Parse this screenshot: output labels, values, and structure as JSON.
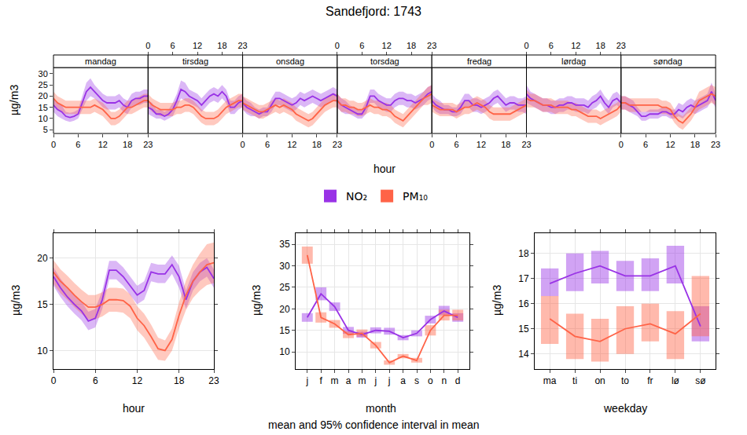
{
  "chart_data": [
    {
      "type": "line",
      "title": "Sandefjord: 1743",
      "x_label": "hour",
      "y_label": "µg/m3",
      "facets": [
        "mandag",
        "tirsdag",
        "onsdag",
        "torsdag",
        "fredag",
        "lørdag",
        "søndag"
      ],
      "x": [
        0,
        1,
        2,
        3,
        4,
        5,
        6,
        7,
        8,
        9,
        10,
        11,
        12,
        13,
        14,
        15,
        16,
        17,
        18,
        19,
        20,
        21,
        22,
        23
      ],
      "xlim": [
        0,
        23
      ],
      "xticks": [
        0,
        6,
        12,
        18,
        23
      ],
      "ylim": [
        3.3,
        32.8
      ],
      "yticks": [
        5,
        10,
        15,
        20,
        25,
        30
      ],
      "grid": false,
      "legend": "bottom",
      "series": [
        {
          "name": "NO₂",
          "color": "#9932e6",
          "values": [
            [
              16,
              14,
              13,
              11,
              10.5,
              11,
              12,
              17,
              22,
              24,
              22,
              20,
              18,
              17,
              17,
              17,
              18,
              16,
              15,
              18,
              19,
              19,
              20,
              20
            ],
            [
              15,
              14,
              12,
              12,
              11,
              12,
              14,
              18,
              23,
              22,
              20,
              19,
              18,
              16,
              18,
              20,
              21,
              20,
              22,
              20,
              15,
              15,
              17,
              18
            ],
            [
              17,
              15,
              14,
              13,
              12,
              13,
              13,
              16,
              19,
              19,
              18,
              17,
              16,
              17,
              19,
              18,
              19,
              20,
              19,
              18,
              19,
              20,
              21,
              20
            ],
            [
              18,
              16,
              15,
              14,
              13,
              12,
              12,
              15,
              20,
              20,
              18,
              17,
              16,
              16,
              18,
              19,
              19,
              18,
              18,
              17,
              18,
              19,
              21,
              22
            ],
            [
              18,
              16,
              15,
              14,
              14,
              13,
              13,
              15,
              18,
              18,
              16,
              16,
              15,
              16,
              17,
              19,
              20,
              18,
              16,
              17,
              17,
              16,
              16,
              16
            ],
            [
              21,
              19,
              18,
              17,
              16,
              16,
              15,
              15,
              16,
              16,
              17,
              17,
              16,
              16,
              16,
              15,
              17,
              18,
              20,
              17,
              15,
              18,
              19,
              17
            ],
            [
              17,
              17,
              16,
              15,
              13,
              11,
              11,
              12,
              12,
              12,
              13,
              13,
              12,
              12,
              14,
              13,
              15,
              16,
              15,
              16,
              17,
              18,
              22,
              18
            ]
          ],
          "ci": [
            [
              3,
              3,
              3,
              2,
              2,
              2,
              2,
              3,
              4,
              4,
              3,
              3,
              3,
              3,
              3,
              3,
              3,
              3,
              3,
              3,
              3,
              3,
              3,
              3
            ],
            [
              3,
              3,
              2,
              2,
              2,
              2,
              3,
              3,
              4,
              4,
              3,
              3,
              3,
              3,
              3,
              3,
              3,
              3,
              3,
              3,
              3,
              3,
              3,
              3
            ],
            [
              3,
              3,
              3,
              2,
              2,
              2,
              2,
              3,
              3,
              3,
              3,
              3,
              3,
              3,
              3,
              3,
              3,
              3,
              3,
              3,
              3,
              3,
              3,
              3
            ],
            [
              3,
              3,
              3,
              2,
              2,
              2,
              2,
              3,
              3,
              3,
              3,
              3,
              3,
              3,
              3,
              3,
              3,
              3,
              3,
              3,
              3,
              3,
              3,
              3
            ],
            [
              3,
              3,
              3,
              2,
              2,
              2,
              2,
              3,
              3,
              3,
              3,
              3,
              3,
              3,
              3,
              3,
              3,
              3,
              3,
              3,
              3,
              3,
              3,
              4
            ],
            [
              4,
              3,
              3,
              3,
              3,
              3,
              3,
              3,
              3,
              3,
              3,
              3,
              3,
              3,
              3,
              3,
              3,
              3,
              3,
              3,
              3,
              3,
              3,
              3
            ],
            [
              3,
              3,
              3,
              3,
              2,
              2,
              2,
              2,
              2,
              2,
              2,
              2,
              2,
              2,
              3,
              3,
              3,
              3,
              3,
              3,
              3,
              3,
              4,
              3
            ]
          ]
        },
        {
          "name": "PM₁₀",
          "color": "#ff6347",
          "values": [
            [
              19,
              17,
              16,
              15,
              15,
              15,
              15,
              15,
              15,
              15,
              16,
              15,
              14,
              12,
              10,
              10,
              11,
              13,
              15,
              15,
              16,
              17,
              18,
              18
            ],
            [
              18,
              16,
              15,
              14,
              14,
              14,
              14,
              15,
              15,
              16,
              16,
              15,
              13,
              11,
              10,
              10,
              10,
              11,
              13,
              15,
              16,
              17,
              18,
              18
            ],
            [
              17,
              16,
              15,
              14,
              13,
              13,
              14,
              15,
              16,
              15,
              16,
              15,
              14,
              12,
              11,
              10,
              9,
              10,
              12,
              14,
              16,
              17,
              18,
              18
            ],
            [
              18,
              16,
              16,
              15,
              15,
              14,
              14,
              15,
              16,
              15,
              15,
              14,
              14,
              13,
              11,
              10,
              9,
              11,
              13,
              15,
              17,
              19,
              20,
              21
            ],
            [
              16,
              15,
              14,
              14,
              14,
              14,
              13,
              14,
              15,
              15,
              16,
              17,
              16,
              15,
              13,
              12,
              12,
              12,
              12,
              12,
              13,
              14,
              15,
              16
            ],
            [
              19,
              18,
              18,
              17,
              16,
              16,
              16,
              15,
              15,
              15,
              15,
              14,
              14,
              13,
              12,
              11,
              11,
              11,
              10,
              11,
              12,
              13,
              14,
              16
            ],
            [
              17,
              17,
              16,
              16,
              16,
              16,
              16,
              16,
              16,
              16,
              15,
              15,
              14,
              11,
              9,
              8,
              10,
              12,
              15,
              18,
              19,
              20,
              21,
              20
            ]
          ],
          "ci": [
            [
              3,
              3,
              3,
              3,
              3,
              3,
              3,
              3,
              3,
              3,
              3,
              3,
              3,
              3,
              3,
              3,
              3,
              3,
              3,
              3,
              3,
              3,
              3,
              3
            ],
            [
              3,
              3,
              3,
              3,
              3,
              3,
              3,
              3,
              3,
              3,
              3,
              3,
              3,
              3,
              3,
              3,
              3,
              3,
              3,
              3,
              3,
              3,
              3,
              3
            ],
            [
              3,
              3,
              3,
              3,
              3,
              3,
              3,
              3,
              3,
              3,
              3,
              3,
              3,
              3,
              3,
              3,
              3,
              3,
              3,
              3,
              3,
              3,
              3,
              3
            ],
            [
              3,
              3,
              3,
              3,
              3,
              3,
              3,
              3,
              3,
              3,
              3,
              3,
              3,
              3,
              3,
              3,
              3,
              3,
              3,
              3,
              3,
              3,
              4,
              4
            ],
            [
              3,
              3,
              3,
              3,
              3,
              3,
              3,
              3,
              3,
              3,
              3,
              3,
              3,
              3,
              3,
              3,
              3,
              3,
              3,
              3,
              3,
              3,
              3,
              3
            ],
            [
              4,
              3,
              3,
              3,
              3,
              3,
              3,
              3,
              3,
              3,
              3,
              3,
              3,
              3,
              3,
              3,
              3,
              3,
              3,
              3,
              3,
              3,
              3,
              3
            ],
            [
              3,
              3,
              3,
              3,
              3,
              3,
              3,
              3,
              3,
              3,
              3,
              3,
              3,
              3,
              3,
              3,
              3,
              3,
              3,
              4,
              4,
              4,
              4,
              4
            ]
          ]
        }
      ]
    },
    {
      "type": "line",
      "x_label": "hour",
      "y_label": "µg/m3",
      "x": [
        0,
        1,
        2,
        3,
        4,
        5,
        6,
        7,
        8,
        9,
        10,
        11,
        12,
        13,
        14,
        15,
        16,
        17,
        18,
        19,
        20,
        21,
        22,
        23
      ],
      "xlim": [
        0,
        23
      ],
      "xticks": [
        0,
        6,
        12,
        18,
        23
      ],
      "ylim": [
        8,
        22.7
      ],
      "yticks": [
        10,
        15,
        20
      ],
      "grid": true,
      "series": [
        {
          "name": "NO₂",
          "color": "#9932e6",
          "values": [
            18,
            16.8,
            15.8,
            15,
            14.3,
            13.2,
            13.5,
            15.5,
            18.7,
            18.7,
            18,
            17,
            16,
            16.5,
            18.5,
            18.3,
            18.3,
            19.3,
            18,
            15.5,
            17.5,
            18.5,
            19,
            17.8
          ],
          "ci": [
            1,
            1,
            1,
            1,
            1,
            1,
            1,
            1,
            1,
            1,
            1,
            1,
            1,
            1,
            1,
            1,
            1,
            1,
            1.2,
            1,
            1,
            1,
            1,
            1
          ]
        },
        {
          "name": "PM₁₀",
          "color": "#ff6347",
          "values": [
            18.5,
            17.5,
            16.8,
            16,
            15.3,
            14.7,
            14.7,
            15,
            15.5,
            15.5,
            15.4,
            14.8,
            13.5,
            12.7,
            11.5,
            10.2,
            10,
            11.2,
            13.8,
            16,
            17.5,
            18.5,
            19.3,
            19.5
          ],
          "ci": [
            1.3,
            1.3,
            1.3,
            1.3,
            1.3,
            1.3,
            1.3,
            1.3,
            1.3,
            1.3,
            1.3,
            1.3,
            1.3,
            1.3,
            1.3,
            1.2,
            1.1,
            1.2,
            1.4,
            1.6,
            1.8,
            2,
            2.2,
            2.2
          ]
        }
      ]
    },
    {
      "type": "line",
      "x_label": "month",
      "y_label": "µg/m3",
      "annotation": "mean and 95% confidence interval in mean",
      "categories": [
        "j",
        "f",
        "m",
        "a",
        "m",
        "j",
        "j",
        "a",
        "s",
        "o",
        "n",
        "d"
      ],
      "ylim": [
        6,
        37.6
      ],
      "yticks": [
        10,
        15,
        20,
        25,
        30,
        35
      ],
      "grid": true,
      "series": [
        {
          "name": "NO₂",
          "color": "#9932e6",
          "values": [
            18,
            23.5,
            20.5,
            15,
            14,
            15,
            14.8,
            13.3,
            14.3,
            17.5,
            19.5,
            18
          ],
          "lower": [
            17,
            22,
            19.5,
            14.2,
            13.3,
            14.3,
            14,
            12.7,
            13.6,
            16.6,
            18.5,
            17
          ],
          "upper": [
            19,
            25,
            21.5,
            15.8,
            14.7,
            15.7,
            15.6,
            13.9,
            15,
            18.4,
            20.7,
            19
          ]
        },
        {
          "name": "PM₁₀",
          "color": "#ff6347",
          "values": [
            32.5,
            18,
            16.5,
            14,
            14.3,
            11.5,
            7.5,
            9,
            8,
            15,
            18.5,
            18.5
          ],
          "lower": [
            30.5,
            16.8,
            15.6,
            13.2,
            13.5,
            10.8,
            7,
            8.5,
            7.5,
            13.8,
            17.3,
            17.3
          ],
          "upper": [
            34.5,
            19.2,
            17.4,
            14.8,
            15.2,
            12.3,
            8,
            9.5,
            8.6,
            16.2,
            19.8,
            19.8
          ]
        }
      ]
    },
    {
      "type": "line",
      "x_label": "weekday",
      "y_label": "µg/m3",
      "categories": [
        "ma",
        "ti",
        "on",
        "to",
        "fr",
        "lø",
        "sø"
      ],
      "ylim": [
        13.4,
        18.8
      ],
      "yticks": [
        14,
        15,
        16,
        17,
        18
      ],
      "grid": true,
      "series": [
        {
          "name": "NO₂",
          "color": "#9932e6",
          "values": [
            16.8,
            17.2,
            17.5,
            17.1,
            17.1,
            17.5,
            15.1
          ],
          "lower": [
            16.3,
            16.5,
            16.8,
            16.5,
            16.5,
            16.8,
            14.5
          ],
          "upper": [
            17.4,
            18,
            18.1,
            17.7,
            17.8,
            18.3,
            15.9
          ]
        },
        {
          "name": "PM₁₀",
          "color": "#ff6347",
          "values": [
            15.4,
            14.7,
            14.5,
            15,
            15.2,
            14.8,
            15.6
          ],
          "lower": [
            14.4,
            13.8,
            13.7,
            14,
            14.5,
            13.8,
            14.7
          ],
          "upper": [
            16.3,
            15.6,
            15.4,
            15.9,
            16,
            15.7,
            17.1
          ]
        }
      ]
    }
  ]
}
